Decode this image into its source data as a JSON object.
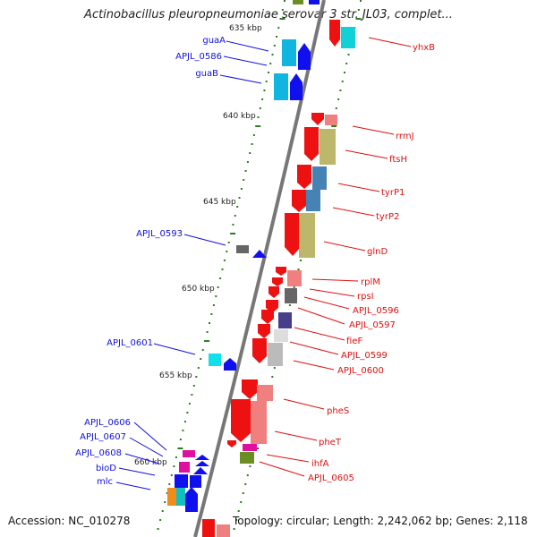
{
  "title": "Actinobacillus pleuropneumoniae serovar 3 str. JL03, complet...",
  "accession": "Accession: NC_010278",
  "topology": "Topology: circular; Length: 2,242,062 bp; Genes: 2,118",
  "scale_labels": [
    "635 kbp",
    "640 kbp",
    "645 kbp",
    "650 kbp",
    "655 kbp",
    "660 kbp"
  ],
  "left_genes": [
    {
      "label": "guaA",
      "color": "#1010dd"
    },
    {
      "label": "APJL_0586",
      "color": "#1010dd"
    },
    {
      "label": "guaB",
      "color": "#1010dd"
    },
    {
      "label": "APJL_0593",
      "color": "#1010dd"
    },
    {
      "label": "APJL_0601",
      "color": "#1010dd"
    },
    {
      "label": "APJL_0606",
      "color": "#1010dd"
    },
    {
      "label": "APJL_0607",
      "color": "#1010dd"
    },
    {
      "label": "APJL_0608",
      "color": "#1010dd"
    },
    {
      "label": "bioD",
      "color": "#1010dd"
    },
    {
      "label": "mlc",
      "color": "#1010dd"
    }
  ],
  "right_genes": [
    {
      "label": "yhxB",
      "color": "#dd1010"
    },
    {
      "label": "rrmJ",
      "color": "#dd1010"
    },
    {
      "label": "ftsH",
      "color": "#dd1010"
    },
    {
      "label": "tyrP1",
      "color": "#dd1010"
    },
    {
      "label": "tyrP2",
      "color": "#dd1010"
    },
    {
      "label": "glnD",
      "color": "#dd1010"
    },
    {
      "label": "rplM",
      "color": "#dd1010"
    },
    {
      "label": "rpsI",
      "color": "#dd1010"
    },
    {
      "label": "APJL_0596",
      "color": "#dd1010"
    },
    {
      "label": "APJL_0597",
      "color": "#dd1010"
    },
    {
      "label": "fieF",
      "color": "#dd1010"
    },
    {
      "label": "APJL_0599",
      "color": "#dd1010"
    },
    {
      "label": "APJL_0600",
      "color": "#dd1010"
    },
    {
      "label": "pheS",
      "color": "#dd1010"
    },
    {
      "label": "pheT",
      "color": "#dd1010"
    },
    {
      "label": "ihfA",
      "color": "#dd1010"
    },
    {
      "label": "APJL_0605",
      "color": "#dd1010"
    }
  ]
}
